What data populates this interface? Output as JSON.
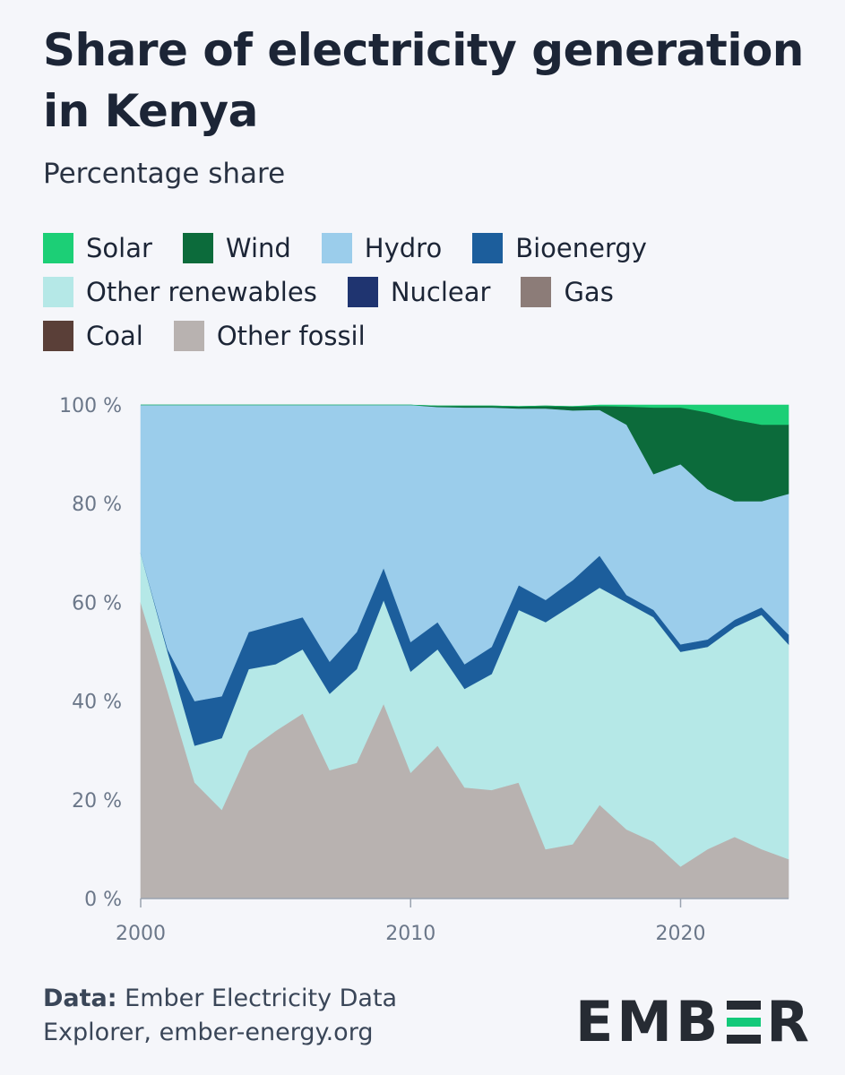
{
  "title": "Share of electricity generation in Kenya",
  "subtitle": "Percentage share",
  "legend": [
    [
      {
        "label": "Solar",
        "color": "#1ccf76"
      },
      {
        "label": "Wind",
        "color": "#0c6b3b"
      },
      {
        "label": "Hydro",
        "color": "#9bcdeb"
      },
      {
        "label": "Bioenergy",
        "color": "#1c5e9c"
      }
    ],
    [
      {
        "label": "Other renewables",
        "color": "#b5e8e7"
      },
      {
        "label": "Nuclear",
        "color": "#1f3470"
      },
      {
        "label": "Gas",
        "color": "#8c7c78"
      }
    ],
    [
      {
        "label": "Coal",
        "color": "#5a3f38"
      },
      {
        "label": "Other fossil",
        "color": "#b8b2b0"
      }
    ]
  ],
  "footer": {
    "prefix": "Data:",
    "text_line1": " Ember Electricity Data",
    "text_line2": "Explorer, ember-energy.org"
  },
  "logo": {
    "left": "EMB",
    "right": "R"
  },
  "chart_data": {
    "type": "area",
    "stacked": true,
    "x": [
      2000,
      2001,
      2002,
      2003,
      2004,
      2005,
      2006,
      2007,
      2008,
      2009,
      2010,
      2011,
      2012,
      2013,
      2014,
      2015,
      2016,
      2017,
      2018,
      2019,
      2020,
      2021,
      2022,
      2023,
      2024
    ],
    "ylim": [
      0,
      100
    ],
    "y_ticks": [
      "0 %",
      "20 %",
      "40 %",
      "60 %",
      "80 %",
      "100 %"
    ],
    "x_ticks": [
      "2000",
      "2010",
      "2020"
    ],
    "x_tick_values": [
      2000,
      2010,
      2020
    ],
    "series": [
      {
        "name": "Other fossil",
        "color": "#b8b2b0",
        "values": [
          60,
          42,
          23.5,
          18,
          30,
          34,
          37.5,
          26,
          27.5,
          39.5,
          25.5,
          31,
          22.5,
          22,
          23.5,
          10,
          11,
          19,
          14,
          11.5,
          6.5,
          10,
          12.5,
          10,
          8
        ]
      },
      {
        "name": "Other renewables",
        "color": "#b5e8e7",
        "values": [
          10,
          8,
          7.5,
          14.5,
          16.5,
          13.5,
          13,
          15.5,
          19,
          21,
          20.5,
          19.5,
          20,
          23.5,
          35,
          46,
          48.5,
          44,
          46,
          45.5,
          43.5,
          41,
          42.5,
          47.5,
          43.5
        ]
      },
      {
        "name": "Bioenergy",
        "color": "#1c5e9c",
        "values": [
          0,
          0.5,
          9,
          8.5,
          7.5,
          8,
          6.5,
          6.5,
          7.5,
          6.5,
          6,
          5.5,
          5,
          5.5,
          5,
          4.5,
          5,
          6.5,
          1.5,
          1.5,
          1.5,
          1.5,
          1.5,
          1.5,
          2
        ]
      },
      {
        "name": "Hydro",
        "color": "#9bcdeb",
        "values": [
          30,
          49.5,
          60,
          59,
          46,
          44.5,
          43,
          52,
          46,
          33,
          48,
          43.6,
          52,
          48.5,
          35.8,
          38.8,
          34.4,
          29.5,
          34.5,
          27.5,
          36.5,
          30.5,
          24,
          21.5,
          28.5
        ]
      },
      {
        "name": "Wind",
        "color": "#0c6b3b",
        "values": [
          0,
          0,
          0,
          0,
          0,
          0,
          0,
          0,
          0,
          0,
          0,
          0.2,
          0.3,
          0.3,
          0.4,
          0.5,
          0.8,
          0.8,
          3.7,
          13.5,
          11.5,
          15.5,
          16.5,
          15.5,
          14
        ]
      },
      {
        "name": "Solar",
        "color": "#1ccf76",
        "values": [
          0,
          0,
          0,
          0,
          0,
          0,
          0,
          0,
          0,
          0,
          0,
          0,
          0,
          0,
          0,
          0,
          0,
          0.2,
          0.3,
          0.5,
          0.5,
          1.5,
          3,
          4,
          4
        ]
      }
    ]
  }
}
